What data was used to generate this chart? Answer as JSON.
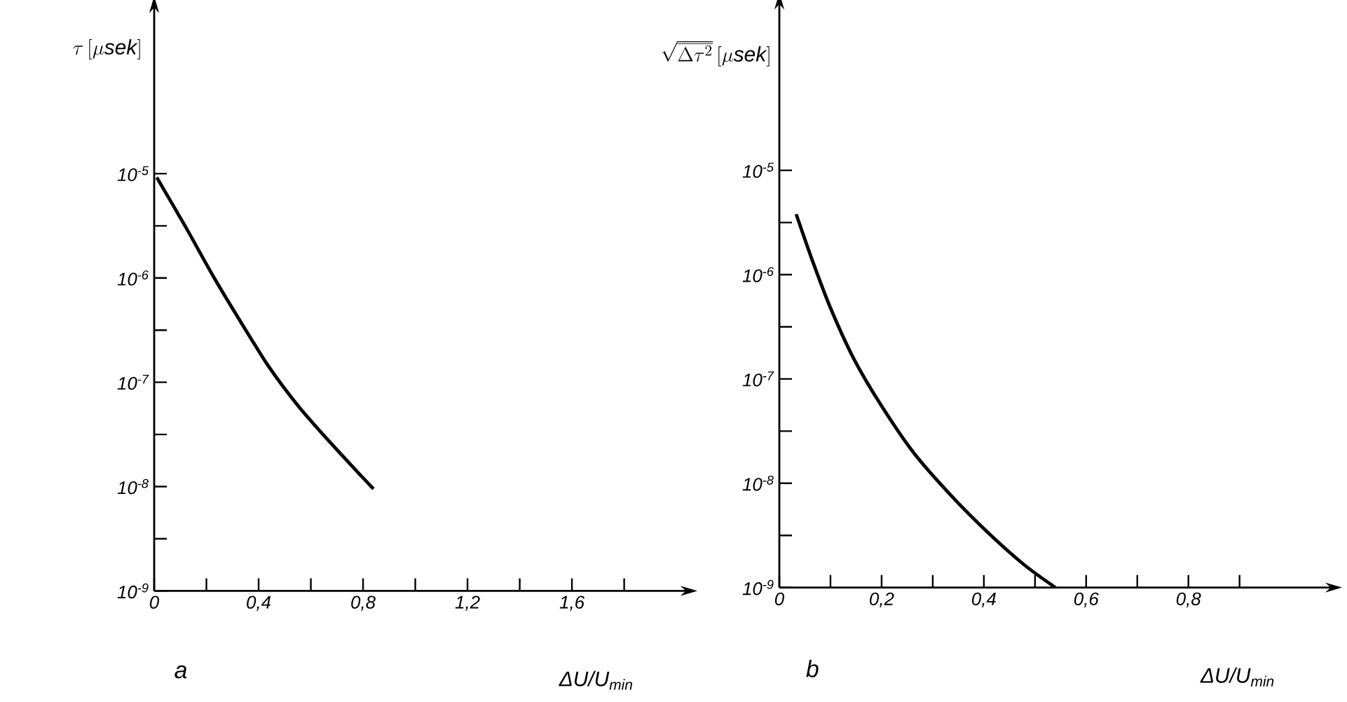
{
  "chart_data": [
    {
      "type": "line",
      "title": "a",
      "xlabel": "ΔU/U$_{min}$",
      "ylabel": "\\tau\\,[\\mu\\mathit{sek}]",
      "log": true,
      "color": "#000000",
      "xlim": [
        0,
        2.04
      ],
      "ylim": [
        1e-09,
        0.0004
      ],
      "xticks": [
        0,
        {
          "value": 0.2,
          "label": null
        },
        {
          "value": 0.4,
          "label": "0,4"
        },
        {
          "value": 0.6,
          "label": null
        },
        {
          "value": 0.8,
          "label": "0,8"
        },
        {
          "value": 1.0,
          "label": null
        },
        {
          "value": 1.2,
          "label": "1,2"
        },
        {
          "value": 1.4,
          "label": null
        },
        {
          "value": 1.6,
          "label": "1,6"
        },
        {
          "value": 1.8,
          "label": null
        }
      ],
      "yticks": [
        {
          "value": 1e-09,
          "label": "10$^{-9}$"
        },
        {
          "value": 3.16e-09,
          "label": null
        },
        {
          "value": 1e-08,
          "label": "10$^{-8}$"
        },
        {
          "value": 3.16e-08,
          "label": null
        },
        {
          "value": 1e-07,
          "label": "10$^{-7}$"
        },
        {
          "value": 3.16e-07,
          "label": null
        },
        {
          "value": 1e-06,
          "label": "10$^{-6}$"
        },
        {
          "value": 3.16e-06,
          "label": null
        },
        {
          "value": 1e-05,
          "label": "10$^{-5}$"
        }
      ],
      "x": [
        0.01,
        0.12,
        0.23,
        0.34,
        0.44,
        0.55,
        0.66,
        0.76,
        0.84
      ],
      "values": [
        9.2e-06,
        3.1e-06,
        1e-06,
        3.5e-07,
        1.4e-07,
        6e-08,
        2.9e-08,
        1.55e-08,
        9.5e-09
      ]
    },
    {
      "type": "line",
      "title": "b",
      "xlabel": "ΔU/U$_{min}$",
      "ylabel": "\\sqrt{\\overline{\\Delta\\tau^{2}}}\\,[\\mu\\mathit{sek}]",
      "log": true,
      "color": "#000000",
      "xlim": [
        0,
        1.08
      ],
      "ylim": [
        1e-09,
        0.0004
      ],
      "xticks": [
        0,
        {
          "value": 0.1,
          "label": null
        },
        {
          "value": 0.2,
          "label": "0,2"
        },
        {
          "value": 0.3,
          "label": null
        },
        {
          "value": 0.4,
          "label": "0,4"
        },
        {
          "value": 0.5,
          "label": null
        },
        {
          "value": 0.6,
          "label": "0,6"
        },
        {
          "value": 0.7,
          "label": null
        },
        {
          "value": 0.8,
          "label": "0,8"
        },
        {
          "value": 0.9,
          "label": null
        }
      ],
      "yticks": [
        {
          "value": 1e-09,
          "label": "10$^{-9}$"
        },
        {
          "value": 3.16e-09,
          "label": null
        },
        {
          "value": 1e-08,
          "label": "10$^{-8}$"
        },
        {
          "value": 3.16e-08,
          "label": null
        },
        {
          "value": 1e-07,
          "label": "10$^{-7}$"
        },
        {
          "value": 3.16e-07,
          "label": null
        },
        {
          "value": 1e-06,
          "label": "10$^{-6}$"
        },
        {
          "value": 3.16e-06,
          "label": null
        },
        {
          "value": 1e-05,
          "label": "10$^{-5}$"
        }
      ],
      "x": [
        0.033,
        0.065,
        0.1,
        0.146,
        0.2,
        0.263,
        0.335,
        0.407,
        0.479,
        0.54
      ],
      "values": [
        3.8e-06,
        1.35e-06,
        4.8e-07,
        1.55e-07,
        5.5e-08,
        1.95e-08,
        7.7e-09,
        3.4e-09,
        1.65e-09,
        1e-09
      ]
    }
  ]
}
